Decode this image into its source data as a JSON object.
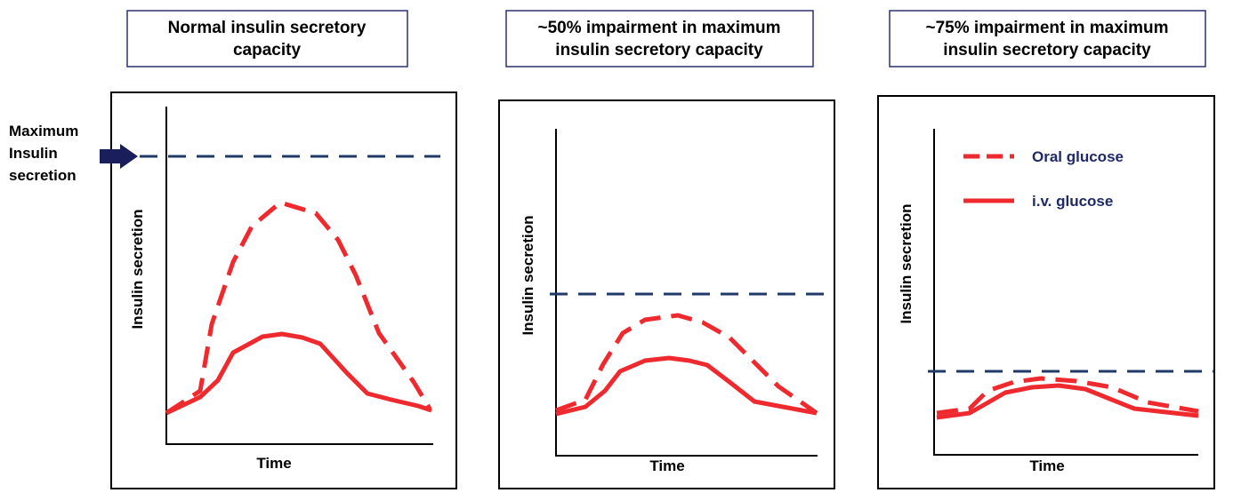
{
  "panels": [
    {
      "title_lines": [
        "Normal insulin secretory",
        "capacity"
      ],
      "y_label": "Insulin secretion",
      "x_label": "Time"
    },
    {
      "title_lines": [
        "~50% impairment in maximum",
        "insulin secretory capacity"
      ],
      "y_label": "Insulin secretion",
      "x_label": "Time"
    },
    {
      "title_lines": [
        "~75% impairment in maximum",
        "insulin secretory capacity"
      ],
      "y_label": "Insulin secretion",
      "x_label": "Time"
    }
  ],
  "max_annotation": [
    "Maximum",
    "Insulin",
    "secretion"
  ],
  "legend": {
    "oral": "Oral glucose",
    "iv": "i.v. glucose"
  }
}
